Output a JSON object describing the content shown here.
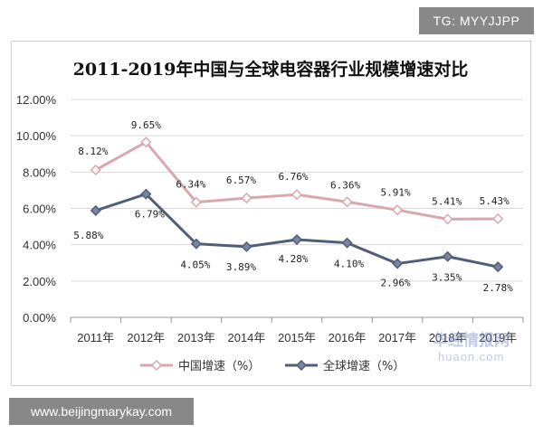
{
  "overlay": {
    "tg_label": "TG: MYYJJPP",
    "site_label": "www.beijingmarykay.com"
  },
  "watermark": {
    "cn": "华经情报网",
    "en": "huaon.com"
  },
  "chart_data": {
    "type": "line",
    "title": "2011-2019年中国与全球电容器行业规模增速对比",
    "xlabel": "",
    "ylabel": "",
    "categories": [
      "2011年",
      "2012年",
      "2013年",
      "2014年",
      "2015年",
      "2016年",
      "2017年",
      "2018年",
      "2019年"
    ],
    "ylim": [
      0,
      12
    ],
    "yticks": [
      0,
      2,
      4,
      6,
      8,
      10,
      12
    ],
    "ytick_labels": [
      "0.00%",
      "2.00%",
      "4.00%",
      "6.00%",
      "8.00%",
      "10.00%",
      "12.00%"
    ],
    "grid": true,
    "legend_position": "bottom",
    "series": [
      {
        "name": "中国增速（%）",
        "color": "#d9a8ad",
        "marker_fill": "#ffffff",
        "values": [
          8.12,
          9.65,
          6.34,
          6.57,
          6.76,
          6.36,
          5.91,
          5.41,
          5.43
        ],
        "labels": [
          "8.12%",
          "9.65%",
          "6.34%",
          "6.57%",
          "6.76%",
          "6.36%",
          "5.91%",
          "5.41%",
          "5.43%"
        ]
      },
      {
        "name": "全球增速（%）",
        "color": "#525e77",
        "marker_fill": "#7a86a0",
        "values": [
          5.88,
          6.79,
          4.05,
          3.89,
          4.28,
          4.1,
          2.96,
          3.35,
          2.78
        ],
        "labels": [
          "5.88%",
          "6.79%",
          "4.05%",
          "3.89%",
          "4.28%",
          "4.10%",
          "2.96%",
          "3.35%",
          "2.78%"
        ]
      }
    ]
  }
}
